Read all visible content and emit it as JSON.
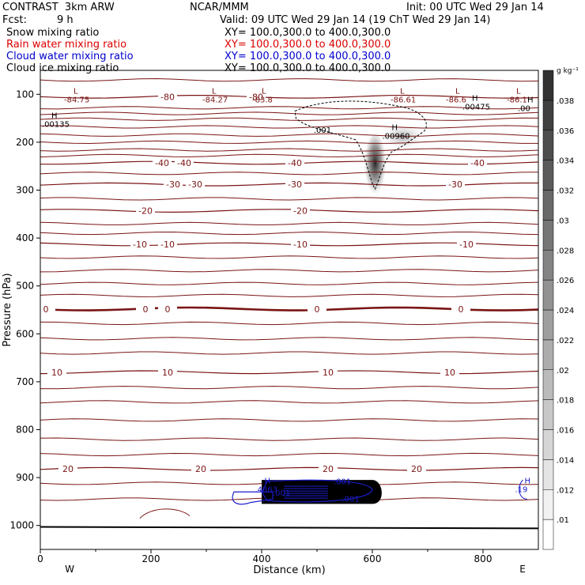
{
  "header": {
    "title": "CONTRAST  3km ARW",
    "center": "NCAR/MMM",
    "init": "Init: 00 UTC Wed 29 Jan 14",
    "fcst_label": "Fcst:",
    "fcst_value": "9 h",
    "valid": "Valid: 09 UTC Wed 29 Jan 14 (19 ChT Wed 29 Jan 14)"
  },
  "fields": [
    {
      "name": "Snow mixing ratio",
      "xy": "XY= 100.0,300.0 to 400.0,300.0",
      "color": "#000000"
    },
    {
      "name": "Rain water mixing ratio",
      "xy": "XY= 100.0,300.0 to 400.0,300.0",
      "color": "#dd0000"
    },
    {
      "name": "Cloud water mixing ratio",
      "xy": "XY= 100.0,300.0 to 400.0,300.0",
      "color": "#0000cc"
    },
    {
      "name": "Cloud ice mixing ratio",
      "xy": "XY= 100.0,300.0 to 400.0,300.0",
      "color": "#000000"
    }
  ],
  "colors": {
    "temp_contour": "#7a1414",
    "cloud_water": "#1c1ccc",
    "snow_shade": "#333333"
  },
  "chart_data": {
    "type": "cross-section",
    "xlabel": "Distance (km)",
    "ylabel": "Pressure (hPa)",
    "xlim": [
      0,
      900
    ],
    "ylim": [
      1050,
      50
    ],
    "x_ticks": [
      0,
      200,
      400,
      600,
      800
    ],
    "y_ticks": [
      100,
      200,
      300,
      400,
      500,
      600,
      700,
      800,
      900,
      1000
    ],
    "end_labels": {
      "left": "W",
      "right": "E"
    },
    "colorbar": {
      "unit": "g kg⁻¹",
      "ticks": [
        ".01",
        ".012",
        ".014",
        ".016",
        ".018",
        ".02",
        ".022",
        ".024",
        ".026",
        ".028",
        ".03",
        ".032",
        ".034",
        ".036",
        ".038"
      ]
    },
    "temperature_contours": [
      {
        "level": -80,
        "p": 105,
        "label_x": [
          230,
          390
        ]
      },
      {
        "level": -40,
        "p": 243,
        "label_x": [
          220,
          260,
          460,
          790
        ]
      },
      {
        "level": -30,
        "p": 288,
        "label_x": [
          240,
          280,
          460,
          750
        ]
      },
      {
        "level": -20,
        "p": 343,
        "label_x": [
          190,
          470
        ]
      },
      {
        "level": -10,
        "p": 413,
        "label_x": [
          180,
          230,
          470,
          770
        ]
      },
      {
        "level": 0,
        "p": 548,
        "label_x": [
          10,
          190,
          230,
          500,
          760
        ]
      },
      {
        "level": 10,
        "p": 680,
        "label_x": [
          30,
          230,
          520,
          740
        ]
      },
      {
        "level": 20,
        "p": 882,
        "label_x": [
          50,
          290,
          520,
          680
        ]
      }
    ],
    "extrema": [
      {
        "type": "L",
        "value": "-84.75",
        "x": 60,
        "p": 112
      },
      {
        "type": "L",
        "value": "-84.27",
        "x": 310,
        "p": 112
      },
      {
        "type": "L",
        "value": "-83.8",
        "x": 400,
        "p": 112
      },
      {
        "type": "L",
        "value": "-86.61",
        "x": 650,
        "p": 112
      },
      {
        "type": "L",
        "value": "-86.6",
        "x": 750,
        "p": 112
      },
      {
        "type": "L",
        "value": "-86.1",
        "x": 860,
        "p": 112
      },
      {
        "type": "H",
        "value": ".00135",
        "x": 20,
        "p": 163
      },
      {
        "type": "H",
        "value": ".00475",
        "x": 780,
        "p": 127
      },
      {
        "type": "H",
        "value": ".00960",
        "x": 635,
        "p": 188
      },
      {
        "type": "H",
        "value": ".00",
        "x": 880,
        "p": 130
      },
      {
        "type": "H",
        "value": ".4863",
        "x": 405,
        "p": 925
      },
      {
        "type": "H",
        "value": ".19",
        "x": 875,
        "p": 925
      }
    ],
    "snow_001_label": ".001",
    "cloud_water_labels": [
      ".001",
      ".001",
      ".001"
    ]
  }
}
